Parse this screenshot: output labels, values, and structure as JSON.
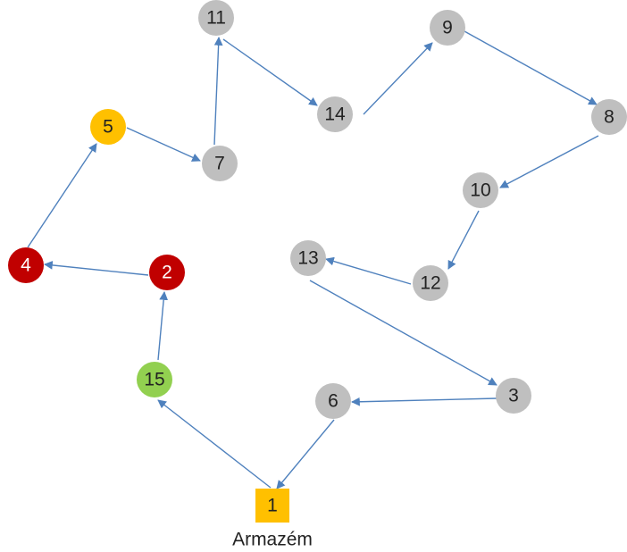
{
  "nodes": [
    {
      "label": "1"
    },
    {
      "label": "15"
    },
    {
      "label": "2"
    },
    {
      "label": "4"
    },
    {
      "label": "5"
    },
    {
      "label": "7"
    },
    {
      "label": "11"
    },
    {
      "label": "14"
    },
    {
      "label": "9"
    },
    {
      "label": "8"
    },
    {
      "label": "10"
    },
    {
      "label": "12"
    },
    {
      "label": "13"
    },
    {
      "label": "3"
    },
    {
      "label": "6"
    }
  ],
  "depot_label": "Armazém"
}
